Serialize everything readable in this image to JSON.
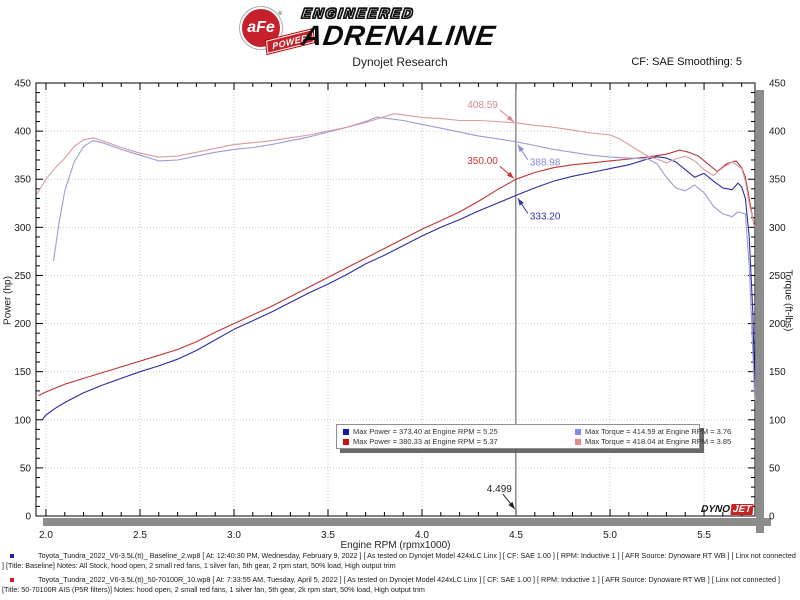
{
  "header": {
    "logo": {
      "circle_text": "aFe",
      "registered": "®",
      "ribbon_text": "POWER",
      "line1": "ENGINEERED",
      "line2": "ADRENALINE"
    },
    "subtitle": "Dynojet Research",
    "smoothing": "CF: SAE Smoothing: 5"
  },
  "chart_data": {
    "type": "line",
    "title": "",
    "xlabel": "Engine RPM (rpmx1000)",
    "ylabel_left": "Power (hp)",
    "ylabel_right": "Torque (ft-lbs)",
    "xlim": [
      1.947,
      5.771
    ],
    "ylim": [
      0,
      450
    ],
    "x_ticks": [
      2.0,
      2.5,
      3.0,
      3.5,
      4.0,
      4.5,
      5.0,
      5.5
    ],
    "y_ticks": [
      0,
      50,
      100,
      150,
      200,
      250,
      300,
      350,
      400,
      450
    ],
    "grid": true,
    "cursor_rpm": 4.499,
    "cursor_label": "4.499",
    "series": [
      {
        "name": "Power Baseline",
        "unit": "hp",
        "axis": "left",
        "color": "#2b2ba6",
        "points": [
          [
            1.98,
            100
          ],
          [
            2.0,
            105
          ],
          [
            2.05,
            112
          ],
          [
            2.1,
            118
          ],
          [
            2.2,
            128
          ],
          [
            2.3,
            136
          ],
          [
            2.4,
            143
          ],
          [
            2.5,
            150
          ],
          [
            2.6,
            156
          ],
          [
            2.7,
            163
          ],
          [
            2.8,
            172
          ],
          [
            2.9,
            183
          ],
          [
            3.0,
            194
          ],
          [
            3.1,
            203
          ],
          [
            3.2,
            212
          ],
          [
            3.3,
            222
          ],
          [
            3.4,
            232
          ],
          [
            3.5,
            241
          ],
          [
            3.6,
            251
          ],
          [
            3.7,
            262
          ],
          [
            3.8,
            271
          ],
          [
            3.9,
            281
          ],
          [
            4.0,
            291
          ],
          [
            4.1,
            300
          ],
          [
            4.2,
            308
          ],
          [
            4.3,
            317
          ],
          [
            4.4,
            325
          ],
          [
            4.5,
            333.2
          ],
          [
            4.6,
            341
          ],
          [
            4.7,
            348
          ],
          [
            4.8,
            353
          ],
          [
            4.9,
            357
          ],
          [
            5.0,
            361
          ],
          [
            5.1,
            365
          ],
          [
            5.2,
            371
          ],
          [
            5.25,
            373.4
          ],
          [
            5.3,
            372
          ],
          [
            5.35,
            368
          ],
          [
            5.4,
            360
          ],
          [
            5.45,
            352
          ],
          [
            5.5,
            356
          ],
          [
            5.55,
            348
          ],
          [
            5.6,
            341
          ],
          [
            5.65,
            339
          ],
          [
            5.68,
            346
          ],
          [
            5.7,
            342
          ],
          [
            5.72,
            330
          ],
          [
            5.74,
            290
          ],
          [
            5.76,
            210
          ],
          [
            5.77,
            130
          ]
        ]
      },
      {
        "name": "Power 50-70100R",
        "unit": "hp",
        "axis": "left",
        "color": "#c03434",
        "points": [
          [
            1.96,
            125
          ],
          [
            2.0,
            129
          ],
          [
            2.1,
            137
          ],
          [
            2.2,
            143
          ],
          [
            2.3,
            149
          ],
          [
            2.4,
            155
          ],
          [
            2.5,
            161
          ],
          [
            2.6,
            167
          ],
          [
            2.7,
            173
          ],
          [
            2.8,
            181
          ],
          [
            2.9,
            191
          ],
          [
            3.0,
            200
          ],
          [
            3.1,
            209
          ],
          [
            3.2,
            218
          ],
          [
            3.3,
            228
          ],
          [
            3.4,
            238
          ],
          [
            3.5,
            248
          ],
          [
            3.6,
            258
          ],
          [
            3.7,
            268
          ],
          [
            3.8,
            278
          ],
          [
            3.9,
            288
          ],
          [
            4.0,
            298
          ],
          [
            4.1,
            307
          ],
          [
            4.2,
            316
          ],
          [
            4.3,
            327
          ],
          [
            4.4,
            339
          ],
          [
            4.5,
            350
          ],
          [
            4.6,
            357
          ],
          [
            4.7,
            362
          ],
          [
            4.8,
            365
          ],
          [
            4.9,
            367
          ],
          [
            5.0,
            369
          ],
          [
            5.1,
            371
          ],
          [
            5.2,
            373
          ],
          [
            5.3,
            376
          ],
          [
            5.37,
            380.3
          ],
          [
            5.42,
            378
          ],
          [
            5.47,
            374
          ],
          [
            5.52,
            366
          ],
          [
            5.57,
            358
          ],
          [
            5.62,
            366
          ],
          [
            5.67,
            369
          ],
          [
            5.7,
            362
          ],
          [
            5.72,
            352
          ],
          [
            5.74,
            330
          ],
          [
            5.76,
            308
          ],
          [
            5.77,
            300
          ]
        ]
      },
      {
        "name": "Torque Baseline",
        "unit": "ft-lbs",
        "axis": "right",
        "color": "#9b9bdb",
        "points": [
          [
            2.04,
            265
          ],
          [
            2.07,
            305
          ],
          [
            2.1,
            338
          ],
          [
            2.15,
            368
          ],
          [
            2.2,
            384
          ],
          [
            2.25,
            390
          ],
          [
            2.3,
            388
          ],
          [
            2.4,
            381
          ],
          [
            2.5,
            375
          ],
          [
            2.6,
            369
          ],
          [
            2.7,
            370
          ],
          [
            2.8,
            374
          ],
          [
            2.9,
            378
          ],
          [
            3.0,
            381
          ],
          [
            3.1,
            383
          ],
          [
            3.2,
            386
          ],
          [
            3.3,
            390
          ],
          [
            3.4,
            394
          ],
          [
            3.5,
            399
          ],
          [
            3.6,
            404
          ],
          [
            3.7,
            410
          ],
          [
            3.76,
            414.6
          ],
          [
            3.82,
            413
          ],
          [
            3.9,
            411
          ],
          [
            4.0,
            407
          ],
          [
            4.1,
            403
          ],
          [
            4.2,
            399
          ],
          [
            4.3,
            395
          ],
          [
            4.4,
            392
          ],
          [
            4.5,
            389
          ],
          [
            4.6,
            385
          ],
          [
            4.7,
            381
          ],
          [
            4.8,
            378
          ],
          [
            4.9,
            375
          ],
          [
            5.0,
            373
          ],
          [
            5.1,
            372
          ],
          [
            5.2,
            371
          ],
          [
            5.25,
            366
          ],
          [
            5.3,
            352
          ],
          [
            5.35,
            341
          ],
          [
            5.4,
            338
          ],
          [
            5.45,
            344
          ],
          [
            5.5,
            336
          ],
          [
            5.55,
            322
          ],
          [
            5.6,
            314
          ],
          [
            5.65,
            311
          ],
          [
            5.68,
            316
          ],
          [
            5.72,
            314
          ],
          [
            5.74,
            260
          ],
          [
            5.76,
            170
          ],
          [
            5.77,
            120
          ]
        ]
      },
      {
        "name": "Torque 50-70100R",
        "unit": "ft-lbs",
        "axis": "right",
        "color": "#dc9b9b",
        "points": [
          [
            1.95,
            334
          ],
          [
            2.0,
            350
          ],
          [
            2.05,
            362
          ],
          [
            2.1,
            372
          ],
          [
            2.15,
            384
          ],
          [
            2.2,
            391
          ],
          [
            2.25,
            393
          ],
          [
            2.3,
            390
          ],
          [
            2.4,
            383
          ],
          [
            2.5,
            377
          ],
          [
            2.6,
            373
          ],
          [
            2.7,
            374
          ],
          [
            2.8,
            378
          ],
          [
            2.9,
            382
          ],
          [
            3.0,
            386
          ],
          [
            3.1,
            388
          ],
          [
            3.2,
            390
          ],
          [
            3.3,
            393
          ],
          [
            3.4,
            396
          ],
          [
            3.5,
            400
          ],
          [
            3.6,
            404
          ],
          [
            3.7,
            409
          ],
          [
            3.8,
            415
          ],
          [
            3.85,
            418
          ],
          [
            3.9,
            417
          ],
          [
            4.0,
            414
          ],
          [
            4.1,
            413
          ],
          [
            4.2,
            411
          ],
          [
            4.3,
            411
          ],
          [
            4.4,
            410
          ],
          [
            4.5,
            408.6
          ],
          [
            4.6,
            406
          ],
          [
            4.7,
            404
          ],
          [
            4.8,
            401
          ],
          [
            4.9,
            398
          ],
          [
            5.0,
            396
          ],
          [
            5.05,
            392
          ],
          [
            5.1,
            386
          ],
          [
            5.15,
            380
          ],
          [
            5.2,
            374
          ],
          [
            5.25,
            371
          ],
          [
            5.3,
            367
          ],
          [
            5.35,
            371
          ],
          [
            5.4,
            374
          ],
          [
            5.45,
            369
          ],
          [
            5.5,
            360
          ],
          [
            5.55,
            354
          ],
          [
            5.6,
            362
          ],
          [
            5.65,
            368
          ],
          [
            5.7,
            361
          ],
          [
            5.72,
            348
          ],
          [
            5.74,
            325
          ],
          [
            5.76,
            308
          ],
          [
            5.77,
            300
          ]
        ]
      }
    ],
    "annotations": [
      {
        "text": "408.59",
        "value": 408.59,
        "color": "#d98888",
        "side": "left"
      },
      {
        "text": "388.98",
        "value": 388.98,
        "color": "#8888d9",
        "side": "right"
      },
      {
        "text": "350.00",
        "value": 350.0,
        "color": "#cc3333",
        "side": "left"
      },
      {
        "text": "333.20",
        "value": 333.2,
        "color": "#3333aa",
        "side": "right"
      }
    ],
    "legend": [
      {
        "swatch": "#1515b0",
        "label": "Max Power = 373.40 at Engine RPM = 5.25"
      },
      {
        "swatch": "#8787e8",
        "label": "Max Torque = 414.59 at Engine RPM = 3.76"
      },
      {
        "swatch": "#cc1111",
        "label": "Max Power = 380.33 at Engine RPM = 5.37"
      },
      {
        "swatch": "#e88787",
        "label": "Max Torque = 418.04 at Engine RPM = 3.85"
      }
    ]
  },
  "watermark": {
    "dyno": "DYNO",
    "jet": "JET"
  },
  "footer": {
    "runs": [
      {
        "bullet_color": "#2222aa",
        "text": "Toyota_Tundra_2022_V6-3.5L(tt)_ Baseline_2.wp8 [ At: 12:40:30 PM, Wednesday, February 9, 2022 ] [ As tested on Dynojet Model 424xLC Linx ] [ CF: SAE 1.00 ] [ RPM: Inductive 1 ] [ AFR Source: Dynoware RT WB ] [ Linx not connected ] [Title: Baseline]  Notes: All Stock, hood open, 2 small red fans, 1 silver fan, 5th gear, 2 rpm start, 50% load, High output trim"
      },
      {
        "bullet_color": "#cc2222",
        "text": "Toyota_Tundra_2022_V6-3.5L(tt)_50-70100R_10.wp8 [ At: 7:33:55 AM, Tuesday, April 5, 2022 ] [ As tested on Dynojet Model 424xLC Linx ] [ CF: SAE 1.00 ] [ RPM: Inductive 1 ] [ AFR Source: Dynoware RT WB ] [ Linx not connected ] [Title: 50-70100R AIS (P5R filters)]  Notes: hood open, 2 small red fans, 1 silver fan, 5th gear, 2k rpm start, 50% load, High output trim"
      }
    ]
  }
}
